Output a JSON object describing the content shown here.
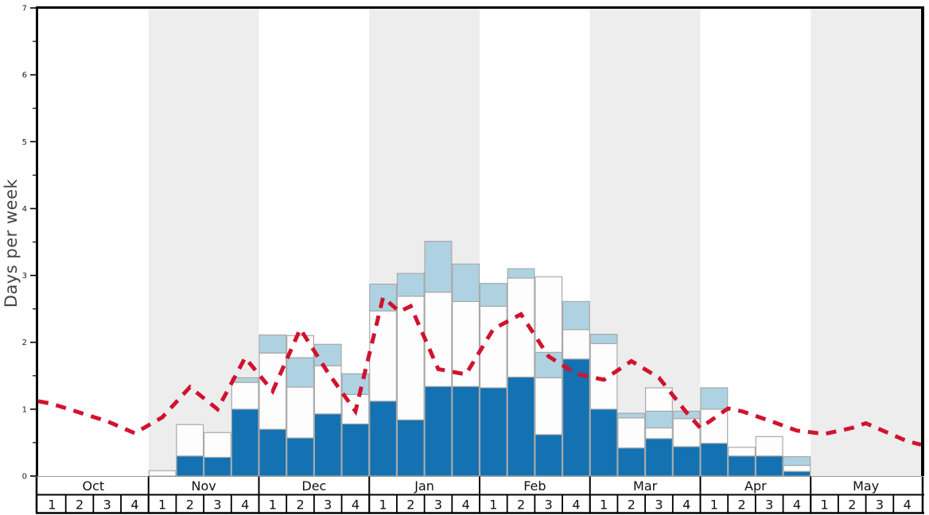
{
  "chart_data": {
    "type": "bar+line",
    "title": "",
    "ylabel": "Days per week",
    "ylim": [
      0,
      7
    ],
    "yticks": [
      0,
      1,
      2,
      3,
      4,
      5,
      6,
      7
    ],
    "minor_tick_step": 0.5,
    "grid": false,
    "legend_position": "none",
    "months": [
      {
        "label": "Oct",
        "weeks": [
          "1",
          "2",
          "3",
          "4"
        ],
        "shaded": false
      },
      {
        "label": "Nov",
        "weeks": [
          "1",
          "2",
          "3",
          "4"
        ],
        "shaded": true
      },
      {
        "label": "Dec",
        "weeks": [
          "1",
          "2",
          "3",
          "4"
        ],
        "shaded": false
      },
      {
        "label": "Jan",
        "weeks": [
          "1",
          "2",
          "3",
          "4"
        ],
        "shaded": true
      },
      {
        "label": "Feb",
        "weeks": [
          "1",
          "2",
          "3",
          "4"
        ],
        "shaded": false
      },
      {
        "label": "Mar",
        "weeks": [
          "1",
          "2",
          "3",
          "4"
        ],
        "shaded": true
      },
      {
        "label": "Apr",
        "weeks": [
          "1",
          "2",
          "3",
          "4"
        ],
        "shaded": false
      },
      {
        "label": "May",
        "weeks": [
          "1",
          "2",
          "3",
          "4"
        ],
        "shaded": true
      }
    ],
    "bars": [
      {
        "month": "Oct",
        "week": "1",
        "segments": []
      },
      {
        "month": "Oct",
        "week": "2",
        "segments": []
      },
      {
        "month": "Oct",
        "week": "3",
        "segments": []
      },
      {
        "month": "Oct",
        "week": "4",
        "segments": []
      },
      {
        "month": "Nov",
        "week": "1",
        "segments": [
          {
            "color": "white",
            "to": 0.08
          }
        ]
      },
      {
        "month": "Nov",
        "week": "2",
        "segments": [
          {
            "color": "blue",
            "to": 0.3
          },
          {
            "color": "white",
            "to": 0.77
          }
        ]
      },
      {
        "month": "Nov",
        "week": "3",
        "segments": [
          {
            "color": "blue",
            "to": 0.28
          },
          {
            "color": "white",
            "to": 0.65
          }
        ]
      },
      {
        "month": "Nov",
        "week": "4",
        "segments": [
          {
            "color": "blue",
            "to": 1.0
          },
          {
            "color": "white",
            "to": 1.4
          },
          {
            "color": "lightblue",
            "to": 1.47
          }
        ]
      },
      {
        "month": "Dec",
        "week": "1",
        "segments": [
          {
            "color": "blue",
            "to": 0.7
          },
          {
            "color": "white",
            "to": 1.84
          },
          {
            "color": "lightblue",
            "to": 2.11
          }
        ]
      },
      {
        "month": "Dec",
        "week": "2",
        "segments": [
          {
            "color": "blue",
            "to": 0.57
          },
          {
            "color": "white",
            "to": 1.33
          },
          {
            "color": "lightblue",
            "to": 1.77
          },
          {
            "color": "white",
            "to": 2.1
          }
        ]
      },
      {
        "month": "Dec",
        "week": "3",
        "segments": [
          {
            "color": "blue",
            "to": 0.93
          },
          {
            "color": "white",
            "to": 1.65
          },
          {
            "color": "lightblue",
            "to": 1.97
          }
        ]
      },
      {
        "month": "Dec",
        "week": "4",
        "segments": [
          {
            "color": "blue",
            "to": 0.78
          },
          {
            "color": "white",
            "to": 1.22
          },
          {
            "color": "lightblue",
            "to": 1.53
          }
        ]
      },
      {
        "month": "Jan",
        "week": "1",
        "segments": [
          {
            "color": "blue",
            "to": 1.12
          },
          {
            "color": "white",
            "to": 2.47
          },
          {
            "color": "lightblue",
            "to": 2.87
          }
        ]
      },
      {
        "month": "Jan",
        "week": "2",
        "segments": [
          {
            "color": "blue",
            "to": 0.84
          },
          {
            "color": "white",
            "to": 2.69
          },
          {
            "color": "lightblue",
            "to": 3.03
          }
        ]
      },
      {
        "month": "Jan",
        "week": "3",
        "segments": [
          {
            "color": "blue",
            "to": 1.34
          },
          {
            "color": "white",
            "to": 2.75
          },
          {
            "color": "lightblue",
            "to": 3.51
          }
        ]
      },
      {
        "month": "Jan",
        "week": "4",
        "segments": [
          {
            "color": "blue",
            "to": 1.34
          },
          {
            "color": "white",
            "to": 2.61
          },
          {
            "color": "lightblue",
            "to": 3.17
          }
        ]
      },
      {
        "month": "Feb",
        "week": "1",
        "segments": [
          {
            "color": "blue",
            "to": 1.32
          },
          {
            "color": "white",
            "to": 2.54
          },
          {
            "color": "lightblue",
            "to": 2.88
          }
        ]
      },
      {
        "month": "Feb",
        "week": "2",
        "segments": [
          {
            "color": "blue",
            "to": 1.48
          },
          {
            "color": "white",
            "to": 2.96
          },
          {
            "color": "lightblue",
            "to": 3.1
          }
        ]
      },
      {
        "month": "Feb",
        "week": "3",
        "segments": [
          {
            "color": "blue",
            "to": 0.62
          },
          {
            "color": "white",
            "to": 1.47
          },
          {
            "color": "lightblue",
            "to": 1.85
          },
          {
            "color": "white",
            "to": 2.98
          }
        ]
      },
      {
        "month": "Feb",
        "week": "4",
        "segments": [
          {
            "color": "blue",
            "to": 1.75
          },
          {
            "color": "white",
            "to": 2.19
          },
          {
            "color": "lightblue",
            "to": 2.61
          }
        ]
      },
      {
        "month": "Mar",
        "week": "1",
        "segments": [
          {
            "color": "blue",
            "to": 1.0
          },
          {
            "color": "white",
            "to": 1.98
          },
          {
            "color": "lightblue",
            "to": 2.12
          }
        ]
      },
      {
        "month": "Mar",
        "week": "2",
        "segments": [
          {
            "color": "blue",
            "to": 0.42
          },
          {
            "color": "white",
            "to": 0.87
          },
          {
            "color": "lightblue",
            "to": 0.94
          }
        ]
      },
      {
        "month": "Mar",
        "week": "3",
        "segments": [
          {
            "color": "blue",
            "to": 0.56
          },
          {
            "color": "white",
            "to": 0.72
          },
          {
            "color": "lightblue",
            "to": 0.97
          },
          {
            "color": "white",
            "to": 1.32
          }
        ]
      },
      {
        "month": "Mar",
        "week": "4",
        "segments": [
          {
            "color": "blue",
            "to": 0.44
          },
          {
            "color": "white",
            "to": 0.86
          },
          {
            "color": "lightblue",
            "to": 0.97
          }
        ]
      },
      {
        "month": "Apr",
        "week": "1",
        "segments": [
          {
            "color": "blue",
            "to": 0.49
          },
          {
            "color": "white",
            "to": 1.0
          },
          {
            "color": "lightblue",
            "to": 1.32
          }
        ]
      },
      {
        "month": "Apr",
        "week": "2",
        "segments": [
          {
            "color": "blue",
            "to": 0.3
          },
          {
            "color": "white",
            "to": 0.43
          }
        ]
      },
      {
        "month": "Apr",
        "week": "3",
        "segments": [
          {
            "color": "blue",
            "to": 0.3
          },
          {
            "color": "white",
            "to": 0.59
          }
        ]
      },
      {
        "month": "Apr",
        "week": "4",
        "segments": [
          {
            "color": "blue",
            "to": 0.07
          },
          {
            "color": "white",
            "to": 0.16
          },
          {
            "color": "lightblue",
            "to": 0.29
          }
        ]
      },
      {
        "month": "May",
        "week": "1",
        "segments": []
      },
      {
        "month": "May",
        "week": "2",
        "segments": []
      },
      {
        "month": "May",
        "week": "3",
        "segments": []
      },
      {
        "month": "May",
        "week": "4",
        "segments": []
      }
    ],
    "red_line": {
      "style": "dashed",
      "points_week_units": [
        [
          -0.5,
          1.12
        ],
        [
          0,
          1.08
        ],
        [
          1,
          0.95
        ],
        [
          2,
          0.82
        ],
        [
          3,
          0.64
        ],
        [
          4,
          0.88
        ],
        [
          5,
          1.33
        ],
        [
          6,
          1.0
        ],
        [
          7,
          1.77
        ],
        [
          8,
          1.27
        ],
        [
          9,
          2.2
        ],
        [
          10,
          1.55
        ],
        [
          11,
          0.97
        ],
        [
          12,
          2.67
        ],
        [
          12.6,
          2.46
        ],
        [
          13,
          2.54
        ],
        [
          14,
          1.6
        ],
        [
          15,
          1.52
        ],
        [
          16,
          2.2
        ],
        [
          17,
          2.42
        ],
        [
          18,
          1.79
        ],
        [
          19,
          1.53
        ],
        [
          20,
          1.44
        ],
        [
          21,
          1.72
        ],
        [
          22,
          1.47
        ],
        [
          23,
          0.95
        ],
        [
          23.5,
          0.72
        ],
        [
          24.5,
          1.01
        ],
        [
          25,
          0.97
        ],
        [
          26,
          0.83
        ],
        [
          27,
          0.68
        ],
        [
          28,
          0.63
        ],
        [
          29,
          0.72
        ],
        [
          29.5,
          0.79
        ],
        [
          30,
          0.7
        ],
        [
          31,
          0.52
        ],
        [
          31.5,
          0.47
        ]
      ]
    },
    "colors": {
      "blue": "#1471b2",
      "lightblue": "#aed2e2",
      "white": "#fdfdfd",
      "red_line": "#d0132f",
      "shaded_band": "#ededed",
      "bar_outline": "#a9a9a9",
      "axis": "#000000",
      "tick_label": "#1a1a1a",
      "month_label": "#111111"
    }
  }
}
